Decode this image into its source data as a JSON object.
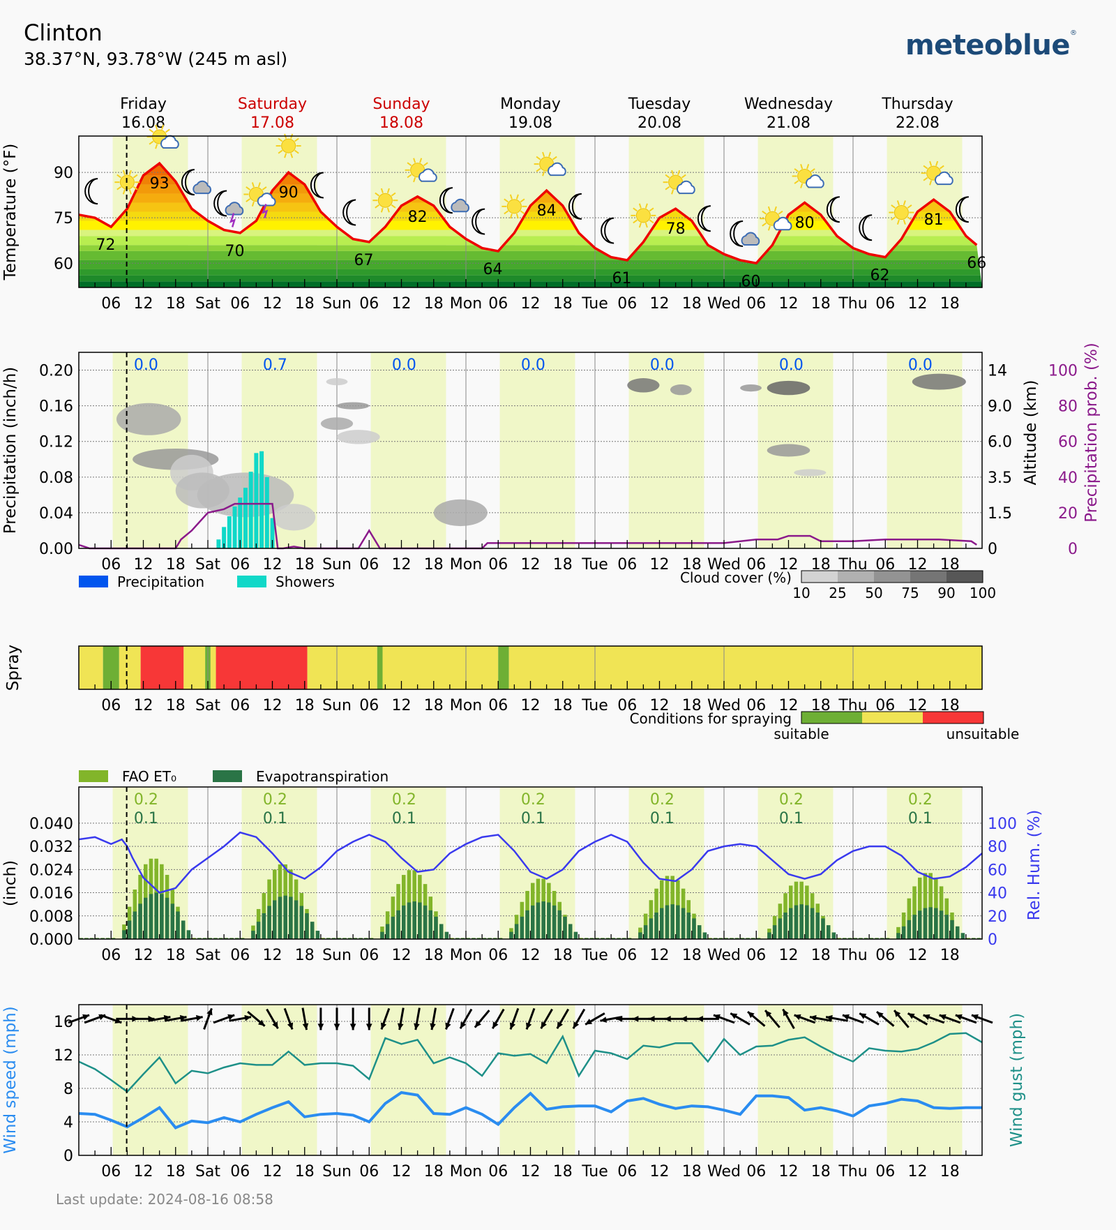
{
  "header": {
    "location": "Clinton",
    "coordinates": "38.37°N, 93.78°W (245 m asl)",
    "brand": "meteoblue",
    "brand_mark": "®"
  },
  "footer": {
    "last_update": "Last update: 2024-08-16 08:58"
  },
  "days": [
    {
      "name": "Friday",
      "date": "16.08",
      "weekend": false
    },
    {
      "name": "Saturday",
      "date": "17.08",
      "weekend": true
    },
    {
      "name": "Sunday",
      "date": "18.08",
      "weekend": true
    },
    {
      "name": "Monday",
      "date": "19.08",
      "weekend": false
    },
    {
      "name": "Tuesday",
      "date": "20.08",
      "weekend": false
    },
    {
      "name": "Wednesday",
      "date": "21.08",
      "weekend": false
    },
    {
      "name": "Thursday",
      "date": "22.08",
      "weekend": false
    }
  ],
  "x_axis": {
    "tick_labels": [
      "06",
      "12",
      "18",
      "Sat",
      "06",
      "12",
      "18",
      "Sun",
      "06",
      "12",
      "18",
      "Mon",
      "06",
      "12",
      "18",
      "Tue",
      "06",
      "12",
      "18",
      "Wed",
      "06",
      "12",
      "18",
      "Thu",
      "06",
      "12",
      "18"
    ],
    "now_hour": 8.9
  },
  "colors": {
    "weekend": "#cc0000",
    "temperature_line": "#ee0000",
    "daylight": "#f0f7c8",
    "precip_prob": "#8b1a8b",
    "precip_amount": "#0055ee",
    "showers": "#10d8c8",
    "fao": "#82b52a",
    "evapo": "#2a7446",
    "humidity": "#3a3aee",
    "wind_speed": "#2a8cf0",
    "wind_gust": "#1e9088",
    "spray_suitable": "#6eaf35",
    "spray_moderate": "#f0e455",
    "spray_unsuitable": "#f73737"
  },
  "chart_data": [
    {
      "id": "temperature",
      "type": "line",
      "ylabel": "Temperature (°F)",
      "yticks": [
        60,
        75,
        90
      ],
      "ylim": [
        52,
        102
      ],
      "x_hours": [
        0,
        3,
        6,
        9,
        12,
        15,
        18,
        21,
        24,
        27,
        30,
        33,
        36,
        39,
        42,
        45,
        48,
        51,
        54,
        57,
        60,
        63,
        66,
        69,
        72,
        75,
        78,
        81,
        84,
        87,
        90,
        93,
        96,
        99,
        102,
        105,
        108,
        111,
        114,
        117,
        120,
        123,
        126,
        129,
        132,
        135,
        138,
        141,
        144,
        147,
        150,
        153,
        156,
        159,
        162,
        165,
        167
      ],
      "temperature_f": [
        76,
        75,
        72,
        78,
        89,
        93,
        87,
        78,
        74,
        71,
        70,
        74,
        84,
        90,
        86,
        77,
        72,
        68,
        67,
        72,
        79,
        82,
        79,
        72,
        68,
        65,
        64,
        70,
        79,
        84,
        79,
        70,
        65,
        62,
        61,
        67,
        75,
        78,
        74,
        66,
        63,
        61,
        60,
        66,
        76,
        80,
        76,
        69,
        65,
        63,
        62,
        68,
        77,
        81,
        77,
        69,
        66
      ],
      "labels": [
        {
          "hour": 5,
          "value": "72"
        },
        {
          "hour": 15,
          "value": "93"
        },
        {
          "hour": 29,
          "value": "70"
        },
        {
          "hour": 39,
          "value": "90"
        },
        {
          "hour": 53,
          "value": "67"
        },
        {
          "hour": 63,
          "value": "82"
        },
        {
          "hour": 77,
          "value": "64"
        },
        {
          "hour": 87,
          "value": "84"
        },
        {
          "hour": 101,
          "value": "61"
        },
        {
          "hour": 111,
          "value": "78"
        },
        {
          "hour": 125,
          "value": "60"
        },
        {
          "hour": 135,
          "value": "80"
        },
        {
          "hour": 149,
          "value": "62"
        },
        {
          "hour": 159,
          "value": "81"
        },
        {
          "hour": 167,
          "value": "66"
        }
      ],
      "weather_icons": [
        {
          "hour": 3,
          "icon": "moon-icon"
        },
        {
          "hour": 9,
          "icon": "sun-icon"
        },
        {
          "hour": 15,
          "icon": "sun-cloud-icon"
        },
        {
          "hour": 21,
          "icon": "moon-cloud-icon"
        },
        {
          "hour": 27,
          "icon": "moon-thunder-icon"
        },
        {
          "hour": 33,
          "icon": "sun-thunder-icon"
        },
        {
          "hour": 39,
          "icon": "sun-icon"
        },
        {
          "hour": 45,
          "icon": "moon-icon"
        },
        {
          "hour": 51,
          "icon": "moon-icon"
        },
        {
          "hour": 57,
          "icon": "sun-icon"
        },
        {
          "hour": 63,
          "icon": "sun-cloud-icon"
        },
        {
          "hour": 69,
          "icon": "moon-cloud-icon"
        },
        {
          "hour": 75,
          "icon": "moon-icon"
        },
        {
          "hour": 81,
          "icon": "sun-icon"
        },
        {
          "hour": 87,
          "icon": "sun-cloud-icon"
        },
        {
          "hour": 93,
          "icon": "moon-icon"
        },
        {
          "hour": 99,
          "icon": "moon-icon"
        },
        {
          "hour": 105,
          "icon": "sun-icon"
        },
        {
          "hour": 111,
          "icon": "sun-cloud-icon"
        },
        {
          "hour": 117,
          "icon": "moon-icon"
        },
        {
          "hour": 123,
          "icon": "moon-cloud-icon"
        },
        {
          "hour": 129,
          "icon": "sun-cloud-icon"
        },
        {
          "hour": 135,
          "icon": "sun-cloud-icon"
        },
        {
          "hour": 141,
          "icon": "moon-icon"
        },
        {
          "hour": 147,
          "icon": "moon-icon"
        },
        {
          "hour": 153,
          "icon": "sun-icon"
        },
        {
          "hour": 159,
          "icon": "sun-cloud-icon"
        },
        {
          "hour": 165,
          "icon": "moon-icon"
        }
      ]
    },
    {
      "id": "precipitation",
      "type": "bar",
      "ylabel": "Precipitation (inch/h)",
      "ylabel_right": "Altitude (km)",
      "ylabel_right2": "Precipitation prob. (%)",
      "yticks": [
        "0.00",
        "0.04",
        "0.08",
        "0.12",
        "0.16",
        "0.20"
      ],
      "ylim": [
        0,
        0.22
      ],
      "altitude_ticks": [
        "0",
        "1.5",
        "3.5",
        "6.0",
        "9.0",
        "14"
      ],
      "prob_ticks": [
        "0",
        "20",
        "40",
        "60",
        "80",
        "100"
      ],
      "daily_totals": [
        "0.0",
        "0.7",
        "0.0",
        "0.0",
        "0.0",
        "0.0",
        "0.0"
      ],
      "shower_hours": [
        26,
        27,
        28,
        29,
        30,
        31,
        32,
        33,
        34,
        35,
        36
      ],
      "shower_values": [
        0.01,
        0.024,
        0.036,
        0.047,
        0.057,
        0.068,
        0.086,
        0.107,
        0.109,
        0.08,
        0.034
      ],
      "prob_hours": [
        0,
        2,
        18,
        19,
        21,
        24,
        27,
        29,
        36,
        37,
        38,
        40,
        42,
        48,
        52,
        54,
        56,
        60,
        72,
        75,
        76,
        96,
        120,
        126,
        130,
        132,
        136,
        138,
        144,
        150,
        160,
        166,
        167
      ],
      "prob_percent": [
        2,
        0,
        0,
        5,
        10,
        20,
        22,
        25,
        25,
        0,
        0,
        1,
        0,
        0,
        0,
        10,
        0,
        0,
        0,
        0,
        3,
        3,
        3,
        5,
        5,
        7,
        7,
        4,
        4,
        5,
        5,
        4,
        2
      ],
      "cloud_legend_label": "Cloud cover (%)",
      "cloud_legend_ticks": [
        "10",
        "25",
        "50",
        "75",
        "90",
        "100"
      ],
      "legend": [
        {
          "label": "Precipitation",
          "color": "#0055ee"
        },
        {
          "label": "Showers",
          "color": "#10d8c8"
        }
      ]
    },
    {
      "id": "spray",
      "type": "heatmap",
      "ylabel": "Spray",
      "segments": [
        {
          "from": 0,
          "to": 4.5,
          "class": "moderate"
        },
        {
          "from": 4.5,
          "to": 7.5,
          "class": "suitable"
        },
        {
          "from": 7.5,
          "to": 11.5,
          "class": "moderate"
        },
        {
          "from": 11.5,
          "to": 19.5,
          "class": "unsuitable"
        },
        {
          "from": 19.5,
          "to": 23.5,
          "class": "moderate"
        },
        {
          "from": 23.5,
          "to": 24.5,
          "class": "suitable"
        },
        {
          "from": 24.5,
          "to": 25.5,
          "class": "moderate"
        },
        {
          "from": 25.5,
          "to": 42.5,
          "class": "unsuitable"
        },
        {
          "from": 42.5,
          "to": 55.5,
          "class": "moderate"
        },
        {
          "from": 55.5,
          "to": 56.5,
          "class": "suitable"
        },
        {
          "from": 56.5,
          "to": 78,
          "class": "moderate"
        },
        {
          "from": 78,
          "to": 80,
          "class": "suitable"
        },
        {
          "from": 80,
          "to": 168,
          "class": "moderate"
        }
      ],
      "legend_label": "Conditions for spraying",
      "legend_low": "suitable",
      "legend_high": "unsuitable"
    },
    {
      "id": "evapotranspiration",
      "type": "bar",
      "ylabel": "(inch)",
      "ylabel_right": "Rel. Hum. (%)",
      "yticks": [
        "0.000",
        "0.008",
        "0.016",
        "0.024",
        "0.032",
        "0.040"
      ],
      "ylim": [
        0,
        0.0525
      ],
      "humidity_ticks": [
        "0",
        "20",
        "40",
        "60",
        "80",
        "100"
      ],
      "legend": [
        {
          "label": "FAO ET₀",
          "color": "#82b52a"
        },
        {
          "label": "Evapotranspiration",
          "color": "#2a7446"
        }
      ],
      "daily_fao": [
        "0.2",
        "0.2",
        "0.2",
        "0.2",
        "0.2",
        "0.2",
        "0.2"
      ],
      "daily_evapo": [
        "0.1",
        "0.1",
        "0.1",
        "0.1",
        "0.1",
        "0.1",
        "0.1"
      ],
      "daily_peak_fao": [
        0.028,
        0.026,
        0.024,
        0.021,
        0.022,
        0.02,
        0.023
      ],
      "daily_peak_evapo": [
        0.016,
        0.015,
        0.013,
        0.013,
        0.012,
        0.012,
        0.011
      ],
      "humidity_hours": [
        0,
        3,
        6,
        8,
        9,
        10,
        12,
        15,
        18,
        21,
        24,
        27,
        30,
        33,
        36,
        39,
        42,
        45,
        48,
        51,
        54,
        57,
        60,
        63,
        66,
        69,
        72,
        75,
        78,
        81,
        84,
        87,
        90,
        93,
        96,
        99,
        102,
        105,
        108,
        111,
        114,
        117,
        120,
        123,
        126,
        129,
        132,
        135,
        138,
        141,
        144,
        147,
        150,
        153,
        156,
        159,
        162,
        165,
        168
      ],
      "humidity_percent": [
        86,
        88,
        82,
        86,
        80,
        70,
        53,
        40,
        44,
        60,
        70,
        80,
        92,
        88,
        74,
        58,
        52,
        62,
        76,
        84,
        90,
        84,
        70,
        58,
        60,
        74,
        82,
        88,
        90,
        76,
        58,
        52,
        60,
        76,
        84,
        90,
        84,
        66,
        52,
        50,
        60,
        76,
        80,
        82,
        80,
        68,
        56,
        52,
        56,
        68,
        76,
        80,
        80,
        72,
        58,
        52,
        54,
        62,
        74
      ]
    },
    {
      "id": "wind",
      "type": "line",
      "ylabel": "Wind speed (mph)",
      "ylabel_right": "Wind gust (mph)",
      "yticks": [
        "0",
        "4",
        "8",
        "12",
        "16"
      ],
      "ylim": [
        0,
        18
      ],
      "x_hours": [
        0,
        3,
        6,
        9,
        12,
        15,
        18,
        21,
        24,
        27,
        30,
        33,
        36,
        39,
        42,
        45,
        48,
        51,
        54,
        57,
        60,
        63,
        66,
        69,
        72,
        75,
        78,
        81,
        84,
        87,
        90,
        93,
        96,
        99,
        102,
        105,
        108,
        111,
        114,
        117,
        120,
        123,
        126,
        129,
        132,
        135,
        138,
        141,
        144,
        147,
        150,
        153,
        156,
        159,
        162,
        165,
        168
      ],
      "wind_speed_mph": [
        5,
        4.9,
        4.2,
        3.4,
        4.5,
        5.7,
        3.3,
        4.1,
        3.9,
        4.5,
        4.0,
        4.9,
        5.7,
        6.4,
        4.6,
        4.9,
        5.0,
        4.8,
        4.0,
        6.2,
        7.5,
        7.2,
        5.0,
        4.9,
        5.7,
        4.9,
        3.7,
        5.7,
        7.4,
        5.5,
        5.8,
        5.9,
        5.9,
        5.2,
        6.5,
        6.8,
        6.1,
        5.6,
        5.9,
        5.8,
        5.4,
        4.9,
        7.1,
        7.1,
        6.9,
        5.4,
        5.7,
        5.3,
        4.7,
        5.9,
        6.2,
        6.7,
        6.5,
        5.7,
        5.6,
        5.7,
        5.7
      ],
      "wind_gust_mph": [
        11.2,
        10.3,
        9.0,
        7.6,
        9.7,
        11.7,
        8.6,
        10.1,
        9.8,
        10.5,
        11.0,
        10.8,
        10.8,
        12.4,
        10.8,
        11.0,
        11.0,
        10.7,
        9.1,
        14.0,
        13.3,
        13.8,
        11.0,
        11.7,
        11.0,
        9.5,
        12.2,
        11.9,
        12.1,
        11.0,
        14.2,
        9.5,
        12.5,
        12.2,
        11.5,
        13.1,
        12.9,
        13.4,
        13.4,
        11.2,
        13.9,
        12.0,
        13.0,
        13.1,
        13.8,
        14.1,
        13.0,
        12.0,
        11.2,
        12.8,
        12.5,
        12.4,
        12.7,
        13.5,
        14.5,
        14.6,
        13.5
      ],
      "arrow_hours_every": 3,
      "arrow_direction_deg": [
        250,
        250,
        290,
        270,
        270,
        260,
        260,
        260,
        200,
        250,
        260,
        310,
        330,
        340,
        350,
        360,
        360,
        360,
        360,
        20,
        10,
        10,
        10,
        20,
        30,
        40,
        30,
        20,
        20,
        30,
        30,
        30,
        60,
        80,
        90,
        90,
        90,
        90,
        90,
        90,
        110,
        120,
        130,
        140,
        150,
        110,
        100,
        100,
        110,
        120,
        130,
        140,
        120,
        110,
        110,
        110,
        110
      ]
    }
  ]
}
